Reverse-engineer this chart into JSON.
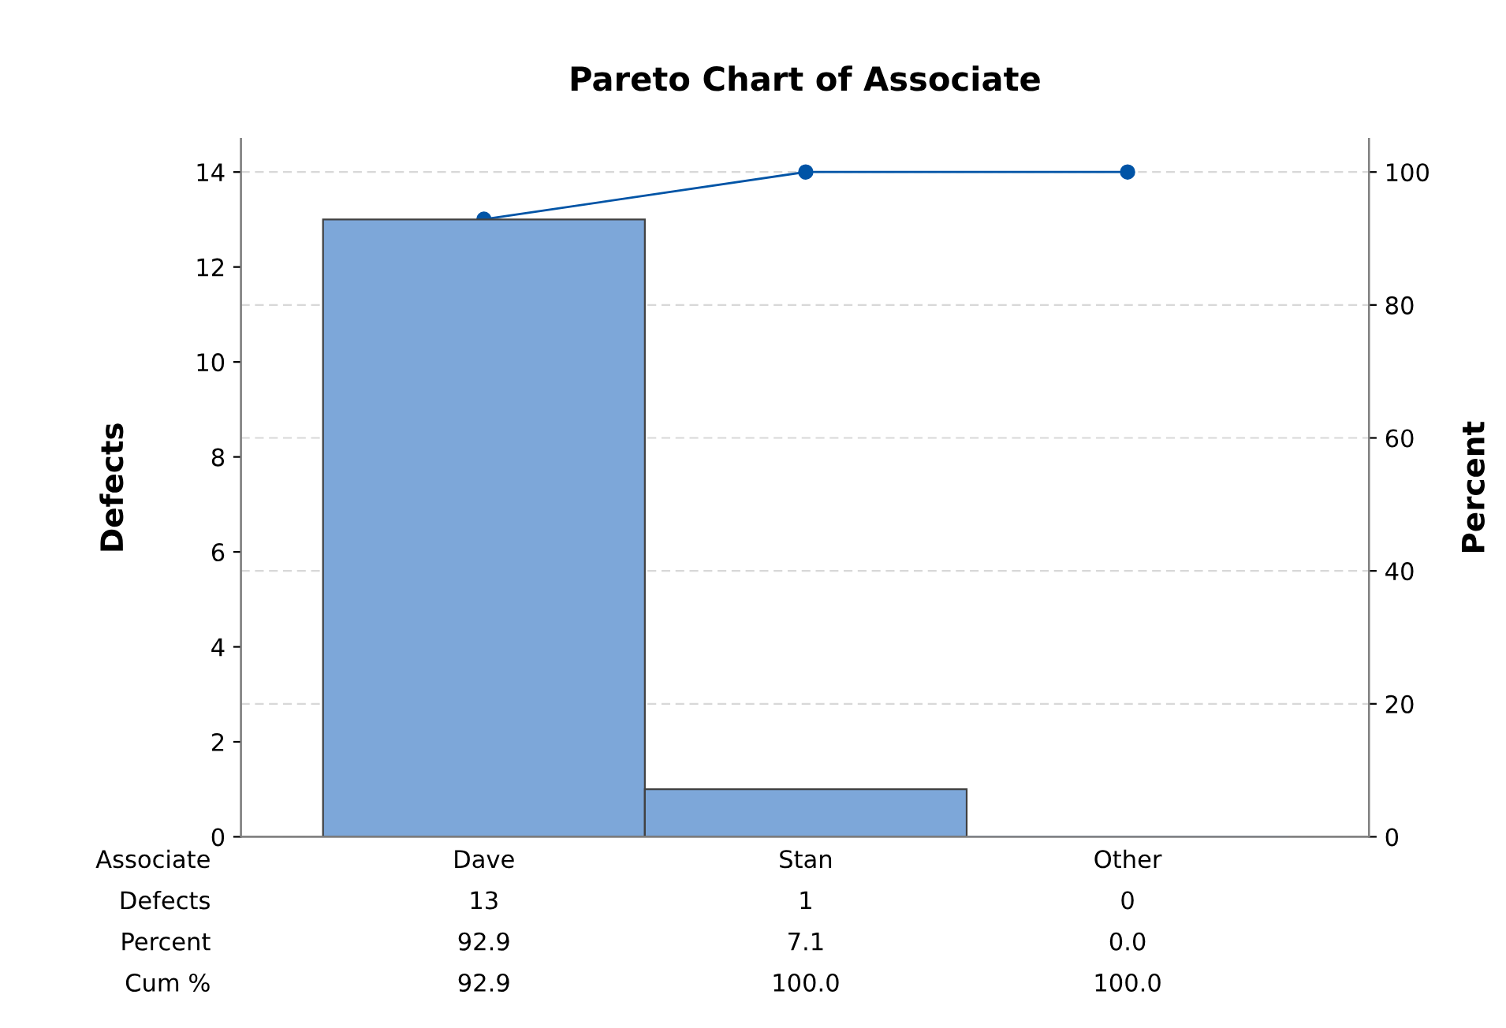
{
  "chart_data": {
    "type": "bar",
    "title": "Pareto Chart of Associate",
    "xlabel": "Associate",
    "ylabel": "Defects",
    "y2label": "Percent",
    "categories": [
      "Dave",
      "Stan",
      "Other"
    ],
    "series": [
      {
        "color": "#7da7d9",
        "values": [
          13,
          1,
          0
        ],
        "value_labels": [
          "13",
          "1",
          "0"
        ]
      },
      {
        "type": "line",
        "axis": "y2",
        "color": "#0054a6",
        "marker": "circle",
        "values": [
          92.9,
          100.0,
          100.0
        ],
        "value_labels": [
          "92.9",
          "100.0",
          "100.0"
        ]
      }
    ],
    "annotations": [
      "Defects",
      "Percent",
      "92.9",
      "7.1",
      "0.0",
      "Cum %"
    ],
    "ylim": [
      0,
      14.7
    ],
    "yticks": [
      0,
      2,
      4,
      6,
      8,
      10,
      12,
      14
    ],
    "y2lim": [
      0,
      105
    ],
    "y2ticks": [
      0,
      20,
      40,
      60,
      80,
      100
    ],
    "grid": "y2",
    "legend": false
  }
}
